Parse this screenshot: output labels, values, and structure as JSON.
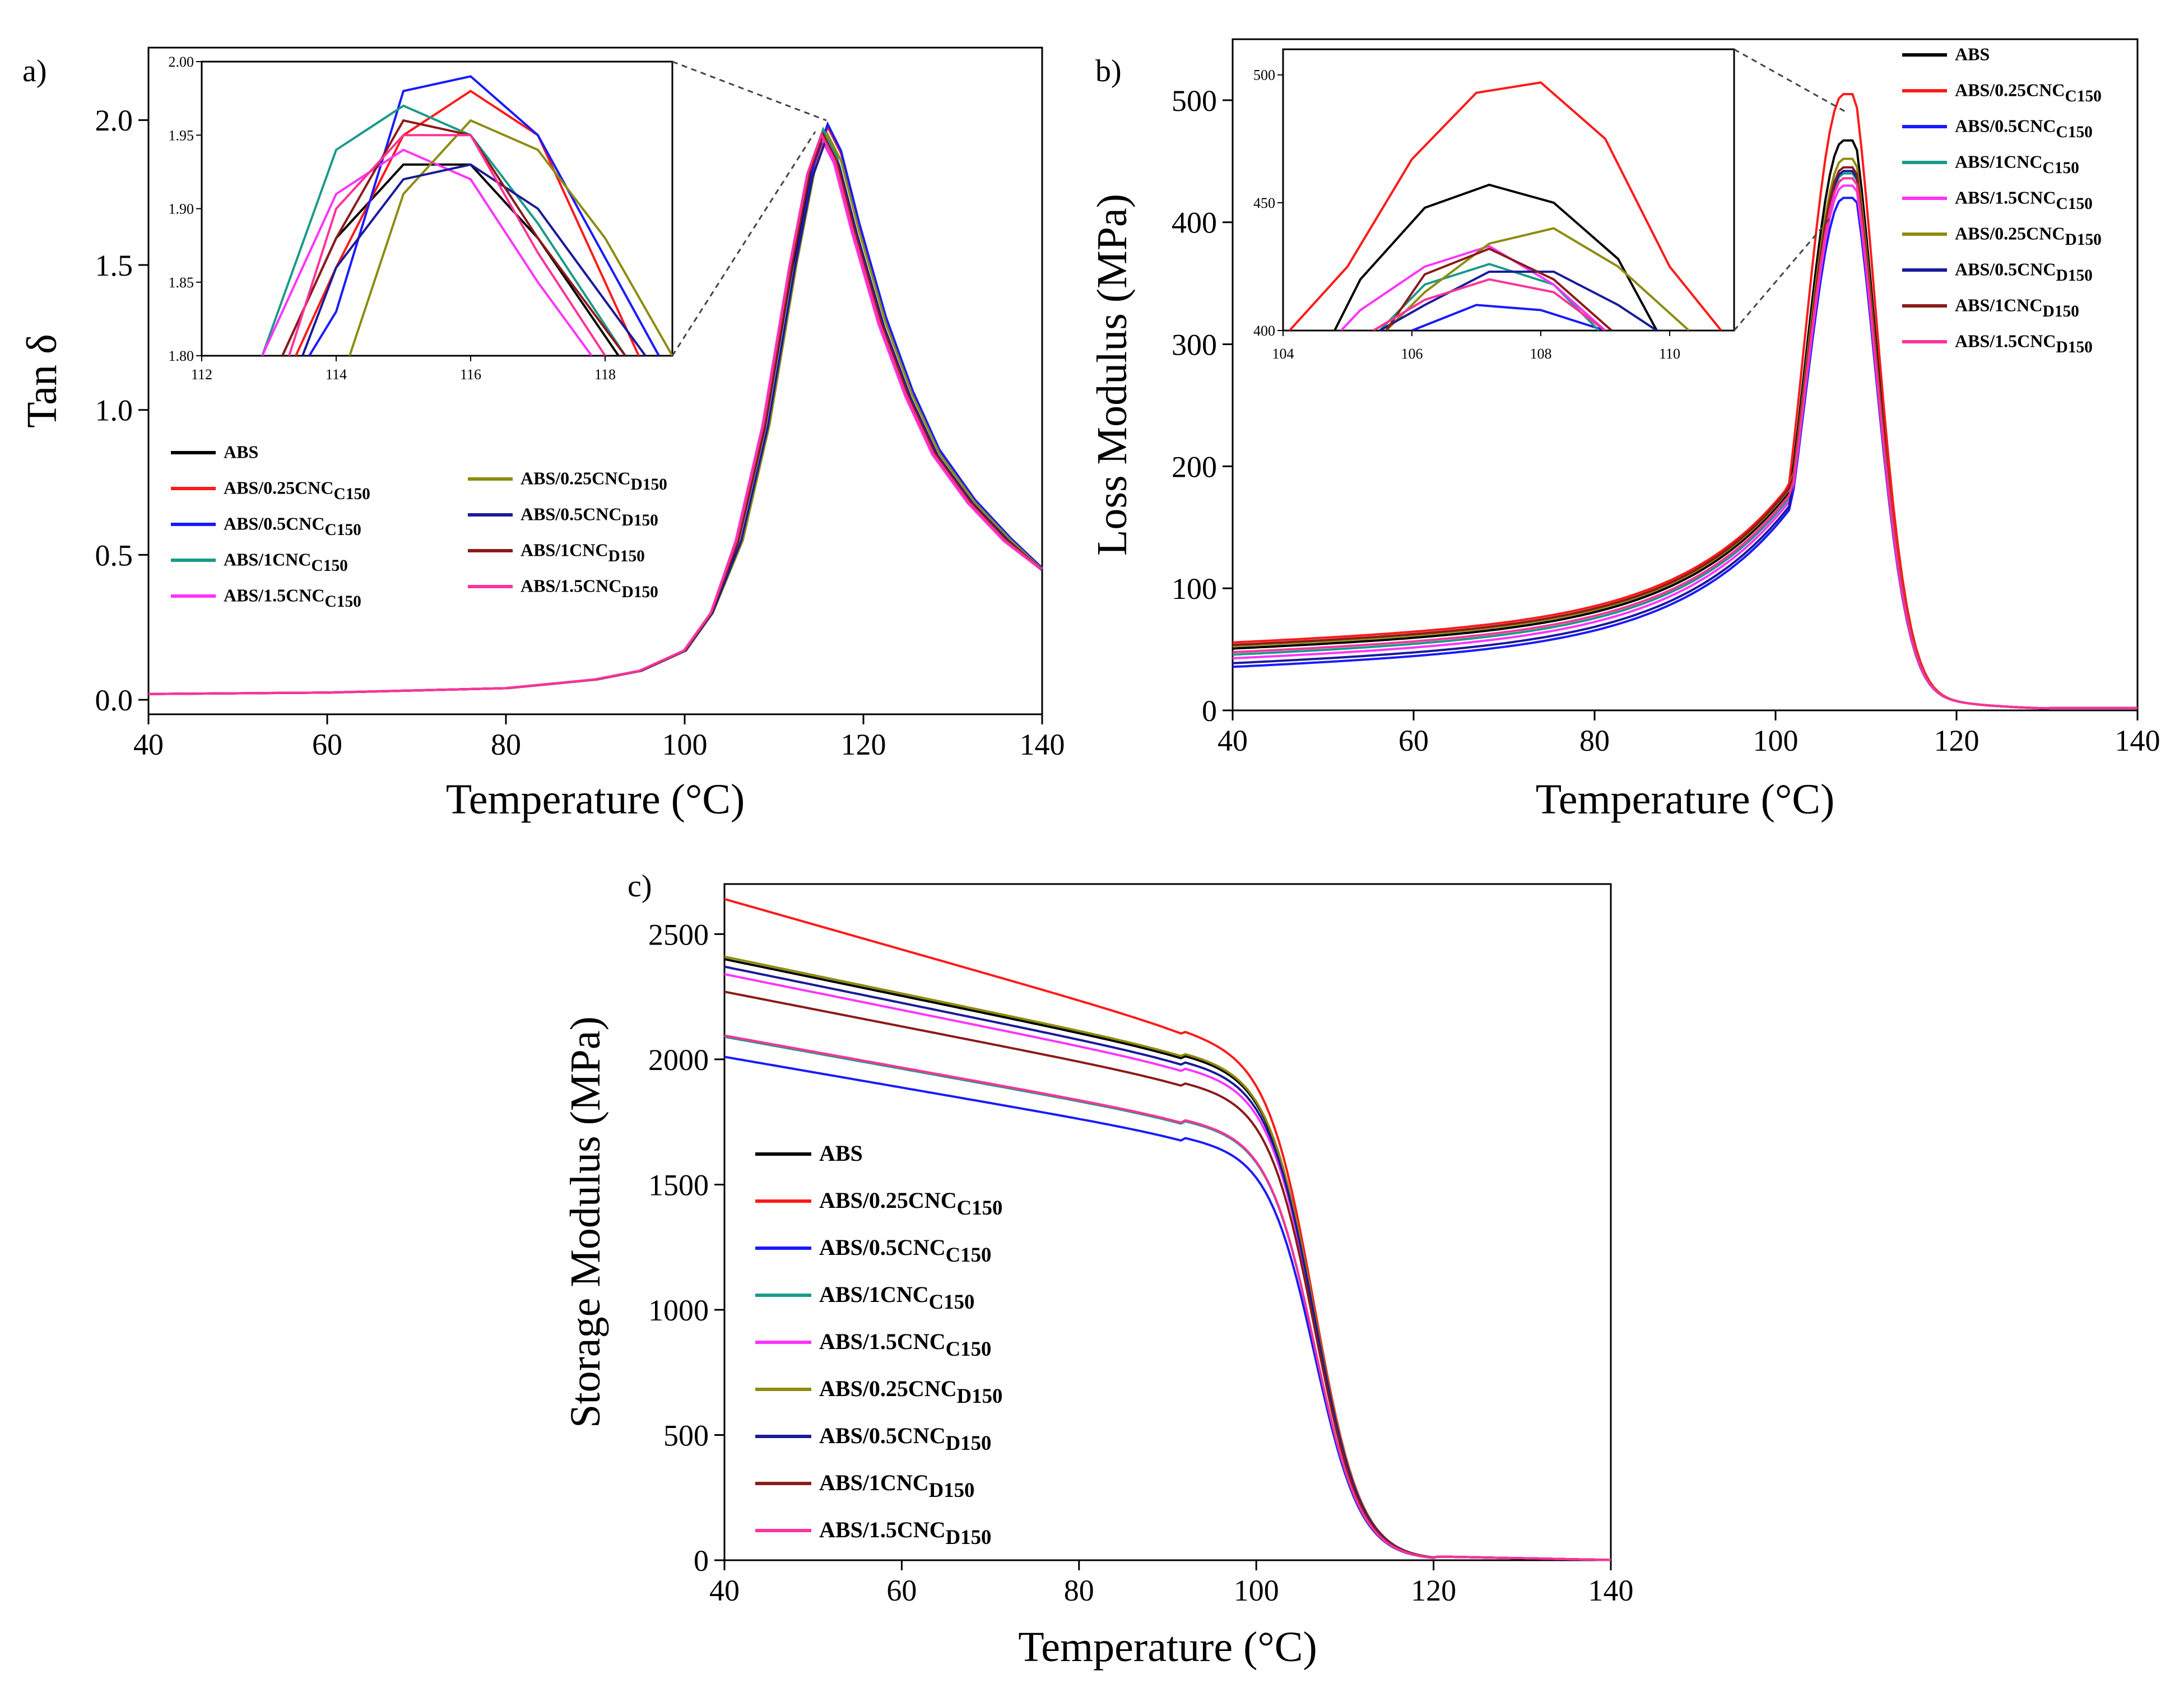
{
  "colors": {
    "ABS": "#000000",
    "C025": "#ff1a1a",
    "C05": "#1a1aff",
    "C1": "#1a9a8a",
    "C15": "#ff33ff",
    "D025": "#8c8c10",
    "D05": "#1a1a99",
    "D1": "#8b1a1a",
    "D15": "#ff3399"
  },
  "legend_labels": [
    {
      "key": "ABS",
      "base": "ABS",
      "sub": ""
    },
    {
      "key": "C025",
      "base": "ABS/0.25CNC",
      "sub": "C150"
    },
    {
      "key": "C05",
      "base": "ABS/0.5CNC",
      "sub": "C150"
    },
    {
      "key": "C1",
      "base": "ABS/1CNC",
      "sub": "C150"
    },
    {
      "key": "C15",
      "base": "ABS/1.5CNC",
      "sub": "C150"
    },
    {
      "key": "D025",
      "base": "ABS/0.25CNC",
      "sub": "D150"
    },
    {
      "key": "D05",
      "base": "ABS/0.5CNC",
      "sub": "D150"
    },
    {
      "key": "D1",
      "base": "ABS/1CNC",
      "sub": "D150"
    },
    {
      "key": "D15",
      "base": "ABS/1.5CNC",
      "sub": "D150"
    }
  ],
  "chart_data": [
    {
      "id": "a",
      "panel_label": "a)",
      "type": "line",
      "xlabel": "Temperature (°C)",
      "ylabel": "Tan δ",
      "xlim": [
        40,
        140
      ],
      "ylim": [
        -0.05,
        2.25
      ],
      "xticks": [
        40,
        60,
        80,
        100,
        120,
        140
      ],
      "yticks": [
        0.0,
        0.5,
        1.0,
        1.5,
        2.0
      ],
      "ytick_labels": [
        "0.0",
        "0.5",
        "1.0",
        "1.5",
        "2.0"
      ],
      "legend_position": "lower-left",
      "peak_shape": {
        "base": 0.02,
        "peak_x_offsets": {
          "ABS": 115.5,
          "C025": 116,
          "C05": 116,
          "C1": 115.5,
          "C15": 115.2,
          "D025": 116,
          "D05": 115.8,
          "D1": 115.5,
          "D15": 115.3
        },
        "peak_values": {
          "ABS": 1.93,
          "C025": 1.98,
          "C05": 1.99,
          "C1": 1.97,
          "C15": 1.94,
          "D025": 1.95,
          "D05": 1.93,
          "D1": 1.95,
          "D15": 1.95
        },
        "x": [
          40,
          60,
          80,
          90,
          95,
          100,
          103,
          106,
          109,
          112,
          114,
          115.5,
          117,
          119,
          122,
          125,
          128,
          132,
          136,
          140
        ],
        "y": [
          0.02,
          0.025,
          0.04,
          0.07,
          0.1,
          0.17,
          0.3,
          0.55,
          0.95,
          1.5,
          1.82,
          1.95,
          1.86,
          1.62,
          1.3,
          1.05,
          0.85,
          0.68,
          0.55,
          0.45
        ]
      },
      "inset": {
        "xlim": [
          112,
          119
        ],
        "ylim": [
          1.8,
          2.0
        ],
        "xticks": [
          112,
          114,
          116,
          118
        ],
        "yticks": [
          1.8,
          1.85,
          1.9,
          1.95,
          2.0
        ],
        "ytick_labels": [
          "1.80",
          "1.85",
          "1.90",
          "1.95",
          "2.00"
        ],
        "series": {
          "ABS": {
            "x": [
              113.2,
              114,
              115,
              116,
              117,
              118.2
            ],
            "y": [
              1.8,
              1.88,
              1.93,
              1.93,
              1.88,
              1.8
            ]
          },
          "C025": {
            "x": [
              113.4,
              114,
              115,
              116,
              117,
              118.5
            ],
            "y": [
              1.8,
              1.86,
              1.95,
              1.98,
              1.95,
              1.8
            ]
          },
          "C05": {
            "x": [
              113.6,
              114,
              115,
              116,
              117,
              118.8
            ],
            "y": [
              1.8,
              1.83,
              1.98,
              1.99,
              1.95,
              1.8
            ]
          },
          "C1": {
            "x": [
              112.9,
              114,
              115,
              116,
              117,
              118.3
            ],
            "y": [
              1.8,
              1.94,
              1.97,
              1.95,
              1.89,
              1.8
            ]
          },
          "C15": {
            "x": [
              112.9,
              114,
              115,
              116,
              117,
              117.8
            ],
            "y": [
              1.8,
              1.91,
              1.94,
              1.92,
              1.85,
              1.8
            ]
          },
          "D025": {
            "x": [
              114.2,
              115,
              116,
              117,
              118,
              119
            ],
            "y": [
              1.8,
              1.91,
              1.96,
              1.94,
              1.88,
              1.8
            ]
          },
          "D05": {
            "x": [
              113.5,
              114,
              115,
              116,
              117,
              118.6
            ],
            "y": [
              1.8,
              1.86,
              1.92,
              1.93,
              1.9,
              1.8
            ]
          },
          "D1": {
            "x": [
              113.2,
              114,
              115,
              116,
              117,
              118.3
            ],
            "y": [
              1.8,
              1.88,
              1.96,
              1.95,
              1.88,
              1.8
            ]
          },
          "D15": {
            "x": [
              113.3,
              114,
              115,
              116,
              117,
              118
            ],
            "y": [
              1.8,
              1.9,
              1.95,
              1.95,
              1.87,
              1.8
            ]
          }
        }
      }
    },
    {
      "id": "b",
      "panel_label": "b)",
      "type": "line",
      "xlabel": "Temperature (°C)",
      "ylabel": "Loss Modulus (MPa)",
      "xlim": [
        40,
        140
      ],
      "ylim": [
        0,
        550
      ],
      "xticks": [
        40,
        60,
        80,
        100,
        120,
        140
      ],
      "yticks": [
        0,
        100,
        200,
        300,
        400,
        500
      ],
      "ytick_labels": [
        "0",
        "100",
        "200",
        "300",
        "400",
        "500"
      ],
      "legend_position": "top-right",
      "peaks": {
        "ABS": 467,
        "C025": 505,
        "C05": 420,
        "C1": 440,
        "C15": 430,
        "D025": 452,
        "D05": 442,
        "D1": 445,
        "D15": 436
      },
      "starts": {
        "ABS": 50,
        "C025": 55,
        "C05": 35,
        "C1": 45,
        "C15": 42,
        "D025": 52,
        "D05": 38,
        "D1": 53,
        "D15": 47
      },
      "inset": {
        "xlim": [
          104,
          111
        ],
        "ylim": [
          400,
          510
        ],
        "xticks": [
          104,
          106,
          108,
          110
        ],
        "yticks": [
          400,
          450,
          500
        ],
        "ytick_labels": [
          "400",
          "450",
          "500"
        ],
        "series": {
          "ABS": {
            "x": [
              104.8,
              105.2,
              106.2,
              107.2,
              108.2,
              109.2,
              109.8
            ],
            "y": [
              400,
              420,
              448,
              457,
              450,
              428,
              400
            ]
          },
          "C025": {
            "x": [
              104.1,
              105,
              106,
              107,
              108,
              109,
              110,
              110.8
            ],
            "y": [
              400,
              425,
              467,
              493,
              497,
              475,
              425,
              400
            ]
          },
          "C05": {
            "x": [
              106,
              107,
              108,
              109
            ],
            "y": [
              400,
              410,
              408,
              400
            ]
          },
          "C1": {
            "x": [
              105.5,
              106.2,
              107.2,
              108.2,
              108.9
            ],
            "y": [
              400,
              418,
              426,
              418,
              400
            ]
          },
          "C15": {
            "x": [
              104.9,
              105.2,
              106.2,
              107.2,
              108.2,
              109
            ],
            "y": [
              400,
              408,
              425,
              433,
              418,
              400
            ]
          },
          "D025": {
            "x": [
              105.6,
              106.2,
              107.2,
              108.2,
              109.2,
              110.3
            ],
            "y": [
              400,
              415,
              434,
              440,
              425,
              400
            ]
          },
          "D05": {
            "x": [
              105.5,
              106.2,
              107.2,
              108.2,
              109.2,
              109.8
            ],
            "y": [
              400,
              410,
              423,
              423,
              410,
              400
            ]
          },
          "D1": {
            "x": [
              105.6,
              106.2,
              107.2,
              108.2,
              109.1
            ],
            "y": [
              400,
              422,
              432,
              420,
              400
            ]
          },
          "D15": {
            "x": [
              105.4,
              106.2,
              107.2,
              108.2,
              109
            ],
            "y": [
              400,
              412,
              420,
              415,
              400
            ]
          }
        }
      }
    },
    {
      "id": "c",
      "panel_label": "c)",
      "type": "line",
      "xlabel": "Temperature (°C)",
      "ylabel": "Storage Modulus (MPa)",
      "xlim": [
        40,
        140
      ],
      "ylim": [
        0,
        2700
      ],
      "xticks": [
        40,
        60,
        80,
        100,
        120,
        140
      ],
      "yticks": [
        0,
        500,
        1000,
        1500,
        2000,
        2500
      ],
      "ytick_labels": [
        "0",
        "500",
        "1000",
        "1500",
        "2000",
        "2500"
      ],
      "legend_position": "lower-left",
      "starts": {
        "ABS": 2400,
        "C025": 2640,
        "C05": 2010,
        "C1": 2090,
        "C15": 2340,
        "D025": 2410,
        "D05": 2370,
        "D1": 2270,
        "D15": 2095
      }
    }
  ]
}
